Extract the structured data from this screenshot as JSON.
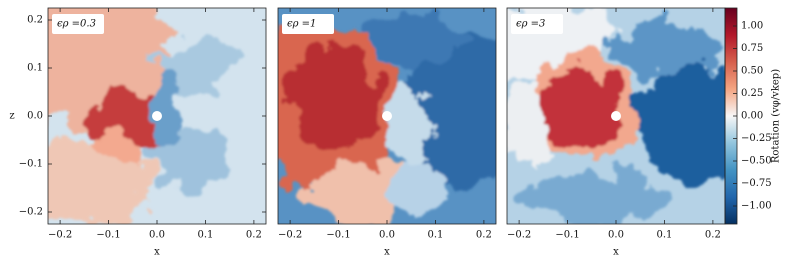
{
  "chart_data": [
    {
      "type": "heatmap",
      "annotation": "ϵρ =0.3",
      "xlabel": "x",
      "ylabel": "z",
      "xlim": [
        -0.225,
        0.225
      ],
      "ylim": [
        -0.225,
        0.225
      ],
      "xticks": [
        {
          "value": -0.2,
          "label": "−0.2"
        },
        {
          "value": -0.1,
          "label": "−0.1"
        },
        {
          "value": 0,
          "label": "0.0"
        },
        0.1,
        0.2
      ],
      "yticks": [
        {
          "value": -0.2,
          "label": "−0.2"
        },
        {
          "value": -0.1,
          "label": "−0.1"
        },
        {
          "value": 0,
          "label": "0.0"
        },
        0.1,
        0.2
      ]
    },
    {
      "type": "heatmap",
      "annotation": "ϵρ =1",
      "xlabel": "x",
      "xlim": [
        -0.225,
        0.225
      ],
      "ylim": [
        -0.225,
        0.225
      ],
      "xticks": [
        {
          "value": -0.2,
          "label": "−0.2"
        },
        {
          "value": -0.1,
          "label": "−0.1"
        },
        {
          "value": 0,
          "label": "0.0"
        },
        0.1,
        0.2
      ]
    },
    {
      "type": "heatmap",
      "annotation": "ϵρ =3",
      "xlabel": "x",
      "xlim": [
        -0.225,
        0.225
      ],
      "ylim": [
        -0.225,
        0.225
      ],
      "xticks": [
        {
          "value": -0.2,
          "label": "−0.2"
        },
        {
          "value": -0.1,
          "label": "−0.1"
        },
        {
          "value": 0,
          "label": "0.0"
        },
        0.1,
        0.2
      ]
    }
  ],
  "colorbar": {
    "label": "Rotation (vφ/vkep)",
    "lim": [
      -1.2,
      1.2
    ],
    "colors": [
      "#053061",
      "#2166ac",
      "#4393c3",
      "#92c5de",
      "#f7f7f7",
      "#f4a582",
      "#d6604d",
      "#b2182b",
      "#67001f"
    ],
    "ticks": [
      {
        "value": -1,
        "label": "−1.00"
      },
      {
        "value": -0.75,
        "label": "−0.75"
      },
      {
        "value": -0.5,
        "label": "−0.50"
      },
      {
        "value": -0.25,
        "label": "−0.25"
      },
      {
        "value": 0,
        "label": "0.00"
      },
      {
        "value": 0.25,
        "label": "0.25"
      },
      {
        "value": 0.5,
        "label": "0.50"
      },
      {
        "value": 0.75,
        "label": "0.75"
      },
      {
        "value": 1,
        "label": "1.00"
      }
    ]
  }
}
